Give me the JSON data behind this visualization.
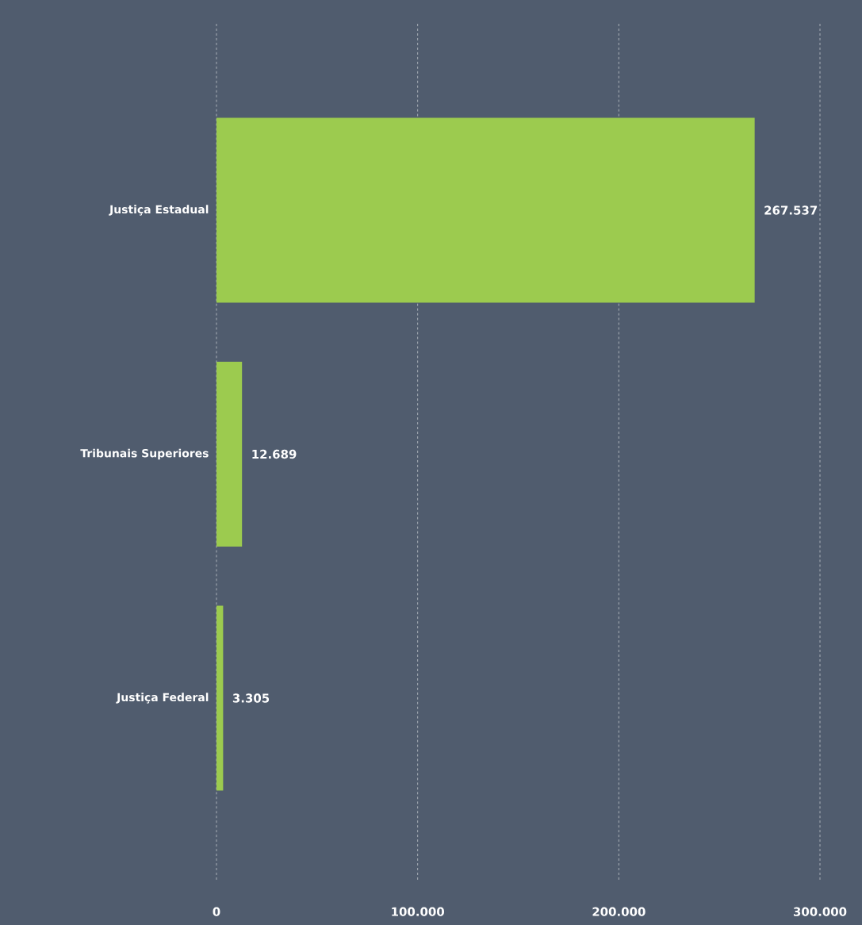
{
  "chart_data": {
    "type": "bar",
    "orientation": "horizontal",
    "categories": [
      "Justiça Estadual",
      "Tribunais Superiores",
      "Justiça Federal"
    ],
    "values": [
      267537,
      12689,
      3305
    ],
    "value_labels": [
      "267.537",
      "12.689",
      "3.305"
    ],
    "color": "#9ccb4f",
    "xlim": [
      0,
      300000
    ],
    "xticks": [
      0,
      {
        "value": 100000,
        "label": "100.000"
      },
      {
        "value": 200000,
        "label": "200.000"
      },
      {
        "value": 300000,
        "label": "300.000"
      }
    ],
    "grid": "x"
  }
}
